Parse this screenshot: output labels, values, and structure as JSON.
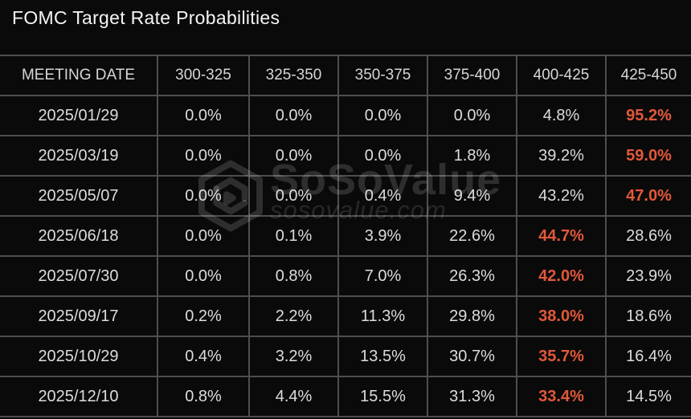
{
  "colors": {
    "accent": "#e2583a",
    "grid": "#4e4e4e",
    "background": "#0a0a0a",
    "title_text": "#f5f5f5",
    "header_text": "#d6d6d6",
    "cell_text": "#dcdcdc"
  },
  "watermark": {
    "brand": "SoSoValue",
    "domain": "sosovalue.com",
    "logo": "cube-logo-icon"
  },
  "chart_data": {
    "type": "table",
    "title": "FOMC Target Rate Probabilities",
    "row_header": "MEETING DATE",
    "columns": [
      "300-325",
      "325-350",
      "350-375",
      "375-400",
      "400-425",
      "425-450"
    ],
    "unit": "%",
    "highlight_rule": "row_max_in_accent_color",
    "rows": [
      {
        "date": "2025/01/29",
        "values": [
          0.0,
          0.0,
          0.0,
          0.0,
          4.8,
          95.2
        ]
      },
      {
        "date": "2025/03/19",
        "values": [
          0.0,
          0.0,
          0.0,
          1.8,
          39.2,
          59.0
        ]
      },
      {
        "date": "2025/05/07",
        "values": [
          0.0,
          0.0,
          0.4,
          9.4,
          43.2,
          47.0
        ]
      },
      {
        "date": "2025/06/18",
        "values": [
          0.0,
          0.1,
          3.9,
          22.6,
          44.7,
          28.6
        ]
      },
      {
        "date": "2025/07/30",
        "values": [
          0.0,
          0.8,
          7.0,
          26.3,
          42.0,
          23.9
        ]
      },
      {
        "date": "2025/09/17",
        "values": [
          0.2,
          2.2,
          11.3,
          29.8,
          38.0,
          18.6
        ]
      },
      {
        "date": "2025/10/29",
        "values": [
          0.4,
          3.2,
          13.5,
          30.7,
          35.7,
          16.4
        ]
      },
      {
        "date": "2025/12/10",
        "values": [
          0.8,
          4.4,
          15.5,
          31.3,
          33.4,
          14.5
        ]
      }
    ]
  }
}
